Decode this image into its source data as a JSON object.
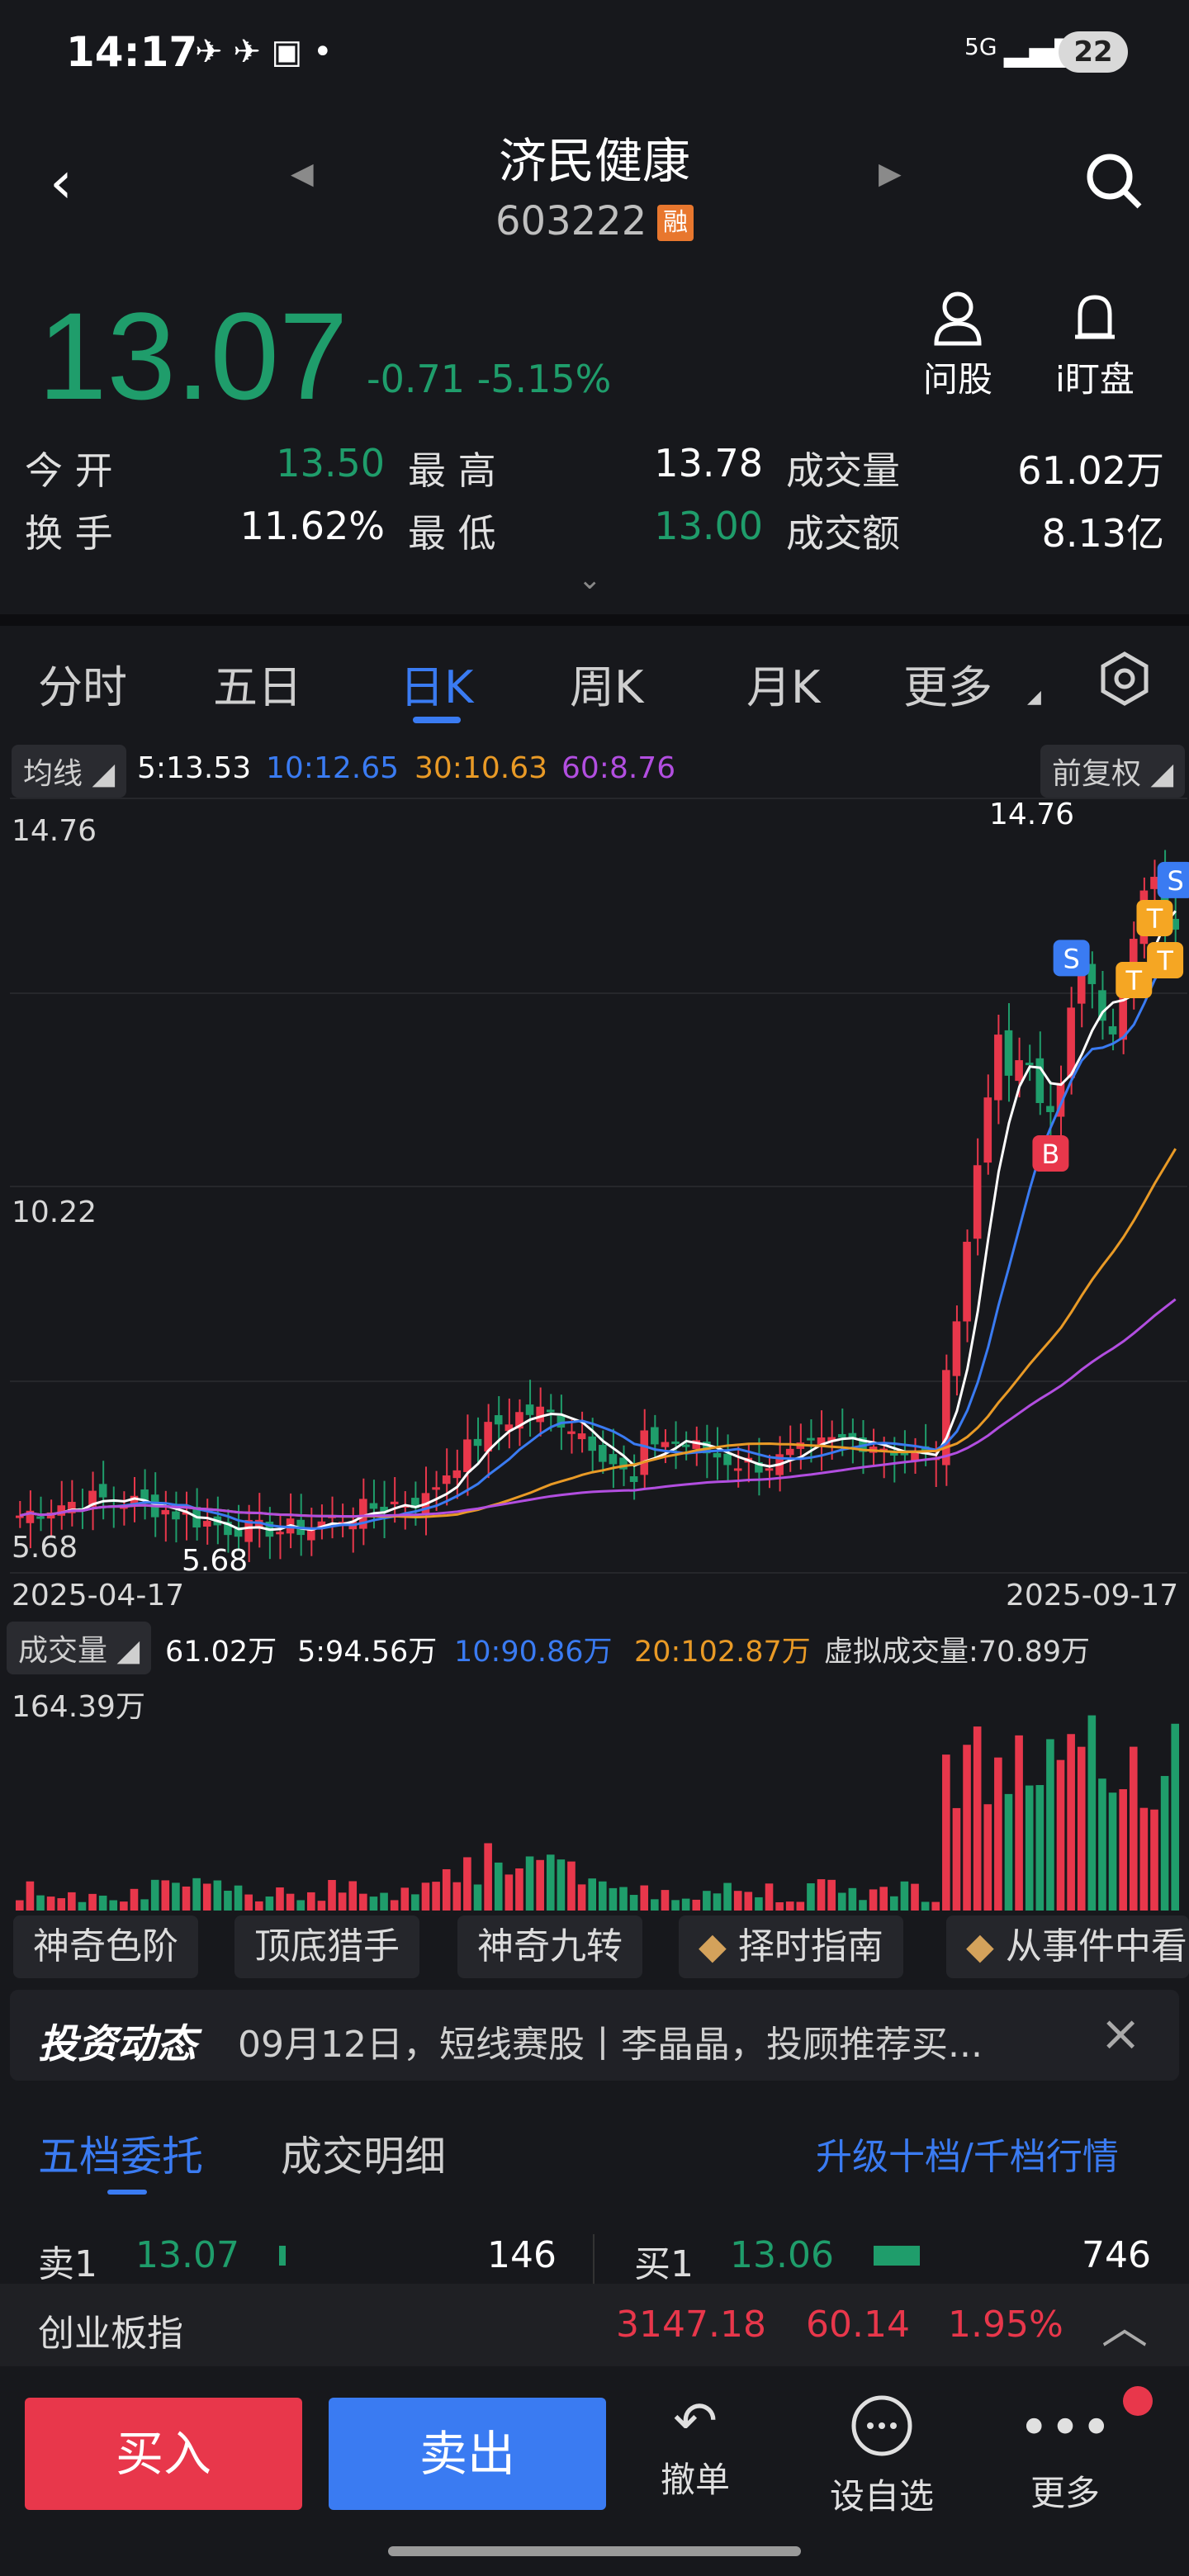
{
  "status": {
    "time": "14:17",
    "network": "5G",
    "battery": "22"
  },
  "header": {
    "title": "济民健康",
    "code": "603222",
    "badge": "融"
  },
  "quote": {
    "price": "13.07",
    "change": "-0.71",
    "pct": "-5.15%",
    "ask_label": "问股",
    "watch_label": "i盯盘",
    "row1": {
      "l1": "今 开",
      "v1": "13.50",
      "l2": "最 高",
      "v2": "13.78",
      "l3": "成交量",
      "v3": "61.02万"
    },
    "row2": {
      "l1": "换 手",
      "v1": "11.62%",
      "l2": "最 低",
      "v2": "13.00",
      "l3": "成交额",
      "v3": "8.13亿"
    }
  },
  "tabs": [
    "分时",
    "五日",
    "日K",
    "周K",
    "月K",
    "更多"
  ],
  "ma": {
    "label": "均线",
    "ma5": "5:13.53",
    "ma10": "10:12.65",
    "ma30": "30:10.63",
    "ma60": "60:8.76",
    "adjust": "前复权"
  },
  "kchart": {
    "high_label": "14.76",
    "mid_label": "10.22",
    "low_label": "5.68",
    "max_mark": "14.76",
    "min_mark": "5.68",
    "start_date": "2025-04-17",
    "end_date": "2025-09-17",
    "marks": [
      "S",
      "S",
      "B",
      "T",
      "T",
      "T"
    ]
  },
  "volume": {
    "label": "成交量",
    "cur": "61.02万",
    "ma5": "5:94.56万",
    "ma10": "10:90.86万",
    "ma20": "20:102.87万",
    "virtual": "虚拟成交量:70.89万",
    "max": "164.39万"
  },
  "chips": [
    "神奇色阶",
    "顶底猎手",
    "神奇九转",
    "择时指南",
    "从事件中看"
  ],
  "news": {
    "tag": "投资动态",
    "text": "09月12日，短线赛股丨李晶晶，投顾推荐买..."
  },
  "orders": {
    "tab1": "五档委托",
    "tab2": "成交明细",
    "upgrade": "升级十档/千档行情",
    "sell_label": "卖1",
    "sell_price": "13.07",
    "sell_vol": "146",
    "buy_label": "买1",
    "buy_price": "13.06",
    "buy_vol": "746"
  },
  "index": {
    "name": "创业板指",
    "value": "3147.18",
    "change": "60.14",
    "pct": "1.95%"
  },
  "bottom": {
    "buy": "买入",
    "sell": "卖出",
    "cancel": "撤单",
    "fav": "设自选",
    "more": "更多"
  },
  "chart_data": {
    "type": "candlestick",
    "title": "",
    "xlabel": "",
    "ylabel": "",
    "x_range": [
      "2025-04-17",
      "2025-09-17"
    ],
    "ylim": [
      5.68,
      14.76
    ],
    "y_ticks": [
      14.76,
      10.22,
      5.68
    ],
    "series": [
      {
        "name": "5",
        "last": 13.53
      },
      {
        "name": "10",
        "last": 12.65
      },
      {
        "name": "30",
        "last": 10.63
      },
      {
        "name": "60",
        "last": 8.76
      }
    ],
    "colors": {
      "up": "#e8374b",
      "down": "#1f9d6b",
      "ma5": "#ffffff",
      "ma10": "#3a7bf2",
      "ma30": "#e99a26",
      "ma60": "#b24ee0"
    }
  }
}
